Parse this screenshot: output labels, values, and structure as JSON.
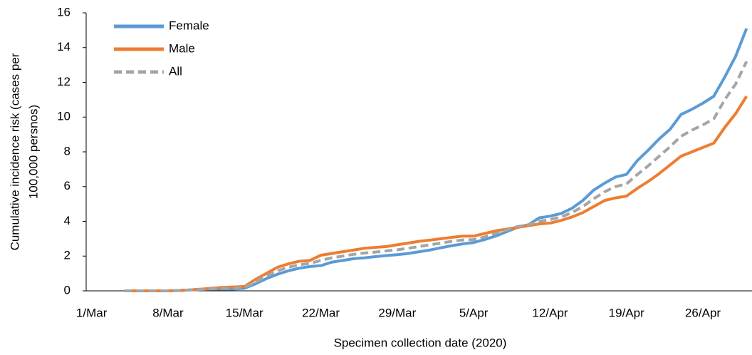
{
  "chart_data": {
    "type": "line",
    "x_label": "Specimen collection date (2020)",
    "y_label": [
      "Cumulative incidence risk (cases per",
      "100,000 persnos)"
    ],
    "categories": [
      "1/Mar",
      null,
      null,
      null,
      null,
      null,
      null,
      "8/Mar",
      null,
      null,
      null,
      null,
      null,
      null,
      "15/Mar",
      null,
      null,
      null,
      null,
      null,
      null,
      "22/Mar",
      null,
      null,
      null,
      null,
      null,
      null,
      "29/Mar",
      null,
      null,
      null,
      null,
      null,
      null,
      "5/Apr",
      null,
      null,
      null,
      null,
      null,
      null,
      "12/Apr",
      null,
      null,
      null,
      null,
      null,
      null,
      "19/Apr",
      null,
      null,
      null,
      null,
      null,
      null,
      "26/Apr",
      null,
      null,
      null,
      null
    ],
    "series": [
      {
        "name": "Female",
        "color": "#5b9bd5",
        "dashed": false,
        "values": [
          null,
          null,
          null,
          0,
          0,
          0,
          0,
          0,
          0.02,
          0.05,
          0.08,
          0.1,
          0.1,
          0.1,
          0.15,
          0.4,
          0.7,
          0.95,
          1.15,
          1.3,
          1.4,
          1.45,
          1.65,
          1.75,
          1.85,
          1.9,
          1.97,
          2.03,
          2.08,
          2.15,
          2.25,
          2.35,
          2.48,
          2.6,
          2.7,
          2.78,
          2.95,
          3.15,
          3.4,
          3.65,
          3.8,
          4.2,
          4.3,
          4.45,
          4.75,
          5.2,
          5.8,
          6.2,
          6.55,
          6.7,
          7.5,
          8.1,
          8.75,
          9.3,
          10.15,
          10.45,
          10.8,
          11.2,
          12.3,
          13.5,
          15.1
        ]
      },
      {
        "name": "Male",
        "color": "#ed7d31",
        "dashed": false,
        "values": [
          null,
          null,
          null,
          0,
          0,
          0,
          0,
          0,
          0.02,
          0.05,
          0.1,
          0.15,
          0.2,
          0.22,
          0.25,
          0.65,
          1.0,
          1.35,
          1.55,
          1.7,
          1.75,
          2.05,
          2.15,
          2.25,
          2.35,
          2.45,
          2.5,
          2.55,
          2.65,
          2.75,
          2.85,
          2.92,
          3.0,
          3.08,
          3.15,
          3.15,
          3.3,
          3.45,
          3.55,
          3.65,
          3.75,
          3.85,
          3.9,
          4.05,
          4.25,
          4.5,
          4.85,
          5.2,
          5.35,
          5.45,
          5.9,
          6.3,
          6.75,
          7.25,
          7.75,
          8.0,
          8.25,
          8.5,
          9.4,
          10.2,
          11.2
        ]
      },
      {
        "name": "All",
        "color": "#a5a5a5",
        "dashed": true,
        "values": [
          null,
          null,
          null,
          0,
          0,
          0,
          0,
          0,
          0.02,
          0.05,
          0.09,
          0.12,
          0.15,
          0.16,
          0.2,
          0.5,
          0.85,
          1.15,
          1.35,
          1.5,
          1.58,
          1.75,
          1.9,
          2.0,
          2.1,
          2.18,
          2.23,
          2.3,
          2.36,
          2.45,
          2.55,
          2.65,
          2.75,
          2.85,
          2.93,
          2.95,
          3.1,
          3.3,
          3.5,
          3.7,
          3.8,
          4.0,
          4.1,
          4.25,
          4.5,
          4.85,
          5.3,
          5.7,
          6.0,
          6.15,
          6.7,
          7.2,
          7.75,
          8.3,
          8.9,
          9.25,
          9.55,
          9.9,
          11.0,
          11.9,
          13.2
        ]
      }
    ],
    "ylim": [
      0,
      16
    ],
    "yticks": [
      0,
      2,
      4,
      6,
      8,
      10,
      12,
      14,
      16
    ],
    "grid": false,
    "legend": "top-left"
  }
}
